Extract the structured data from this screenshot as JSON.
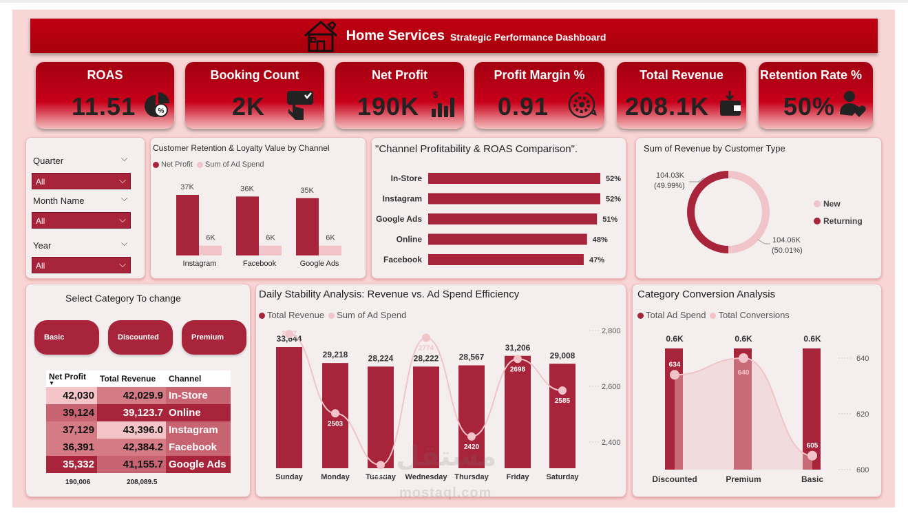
{
  "header": {
    "title": "Home Services",
    "subtitle": "Strategic Performance Dashboard"
  },
  "kpis": [
    {
      "label": "ROAS",
      "value": "11.51",
      "icon": "pie-percent-icon"
    },
    {
      "label": "Booking Count",
      "value": "2K",
      "icon": "hand-tap-icon"
    },
    {
      "label": "Net Profit",
      "value": "190K",
      "icon": "bar-dollar-icon"
    },
    {
      "label": "Profit Margin %",
      "value": "0.91",
      "icon": "gear-cycle-icon"
    },
    {
      "label": "Total Revenue",
      "value": "208.1K",
      "icon": "wallet-icon"
    },
    {
      "label": "Retention Rate %",
      "value": "50%",
      "icon": "user-heart-icon"
    }
  ],
  "slicers": [
    {
      "label": "Quarter",
      "value": "All"
    },
    {
      "label": "Month Name",
      "value": "All"
    },
    {
      "label": "Year",
      "value": "All"
    }
  ],
  "retention_chart": {
    "title": "Customer Retention & Loyalty Value by Channel",
    "legend": [
      "Net Profit",
      "Sum of Ad Spend"
    ]
  },
  "roas_chart": {
    "title": "\"Channel Profitability & ROAS Comparison\"."
  },
  "donut_chart": {
    "title": "Sum of Revenue by Customer Type",
    "legend": [
      "New",
      "Returning"
    ],
    "labels": [
      {
        "value": "104.03K",
        "pct": "(49.99%)"
      },
      {
        "value": "104.06K",
        "pct": "(50.01%)"
      }
    ]
  },
  "category": {
    "title": "Select Category To change",
    "buttons": [
      "Basic",
      "Discounted",
      "Premium"
    ],
    "table": {
      "headers": [
        "Net Profit",
        "Total Revenue",
        "Channel"
      ],
      "rows": [
        [
          "42,030",
          "42,029.9",
          "In-Store"
        ],
        [
          "39,124",
          "39,123.7",
          "Online"
        ],
        [
          "37,129",
          "43,396.0",
          "Instagram"
        ],
        [
          "36,391",
          "42,384.2",
          "Facebook"
        ],
        [
          "35,332",
          "41,155.7",
          "Google Ads"
        ]
      ],
      "totals": [
        "190,006",
        "208,089.5"
      ]
    }
  },
  "daily_chart": {
    "title": "Daily Stability Analysis: Revenue vs. Ad Spend Efficiency",
    "legend": [
      "Total Revenue",
      "Sum of Ad Spend"
    ]
  },
  "conversion_chart": {
    "title": "Category Conversion Analysis",
    "legend": [
      "Total Ad Spend",
      "Total Conversions"
    ]
  },
  "watermark": {
    "arabic": "مستقل",
    "latin": "mostaql.com"
  },
  "colors": {
    "primary": "#a8243a",
    "light": "#f0c4c8",
    "red": "#c00012"
  },
  "chart_data": [
    {
      "type": "bar",
      "title": "Customer Retention & Loyalty Value by Channel",
      "categories": [
        "Instagram",
        "Facebook",
        "Google Ads"
      ],
      "series": [
        {
          "name": "Net Profit",
          "values": [
            37,
            36,
            35
          ],
          "labels": [
            "37K",
            "36K",
            "35K"
          ]
        },
        {
          "name": "Sum of Ad Spend",
          "values": [
            6,
            6,
            6
          ],
          "labels": [
            "6K",
            "6K",
            "6K"
          ]
        }
      ]
    },
    {
      "type": "bar",
      "orientation": "horizontal",
      "title": "\"Channel Profitability & ROAS Comparison\".",
      "categories": [
        "In-Store",
        "Instagram",
        "Google Ads",
        "Online",
        "Facebook"
      ],
      "values": [
        52,
        52,
        51,
        48,
        47
      ],
      "labels": [
        "52%",
        "52%",
        "51%",
        "48%",
        "47%"
      ]
    },
    {
      "type": "pie",
      "title": "Sum of Revenue by Customer Type",
      "categories": [
        "New",
        "Returning"
      ],
      "values": [
        104.03,
        104.06
      ],
      "percent": [
        49.99,
        50.01
      ]
    },
    {
      "type": "bar",
      "title": "Daily Stability Analysis: Revenue vs. Ad Spend Efficiency",
      "categories": [
        "Sunday",
        "Monday",
        "Tuesday",
        "Wednesday",
        "Thursday",
        "Friday",
        "Saturday"
      ],
      "series": [
        {
          "name": "Total Revenue",
          "values": [
            33644,
            29218,
            28224,
            28222,
            28567,
            31206,
            29008
          ],
          "labels": [
            "33,644",
            "29,218",
            "28,224",
            "28,222",
            "28,567",
            "31,206",
            "29,008"
          ]
        },
        {
          "name": "Sum of Ad Spend",
          "type": "line",
          "values": [
            2787,
            2503,
            2318,
            2774,
            2420,
            2698,
            2585
          ],
          "labels": [
            "2787",
            "2503",
            "2318",
            "2774",
            "2420",
            "2698",
            "2585"
          ]
        }
      ],
      "y2_ticks": [
        "2,400",
        "2,600",
        "2,800"
      ]
    },
    {
      "type": "bar",
      "title": "Category Conversion Analysis",
      "categories": [
        "Discounted",
        "Premium",
        "Basic"
      ],
      "series": [
        {
          "name": "Total Ad Spend",
          "values": [
            0.6,
            0.6,
            0.6
          ],
          "labels": [
            "0.6K",
            "0.6K",
            "0.6K"
          ]
        },
        {
          "name": "Total Conversions",
          "type": "area",
          "values": [
            634,
            640,
            605
          ],
          "labels": [
            "634",
            "640",
            "605"
          ]
        }
      ],
      "y2_ticks": [
        "600",
        "620",
        "640"
      ]
    }
  ]
}
